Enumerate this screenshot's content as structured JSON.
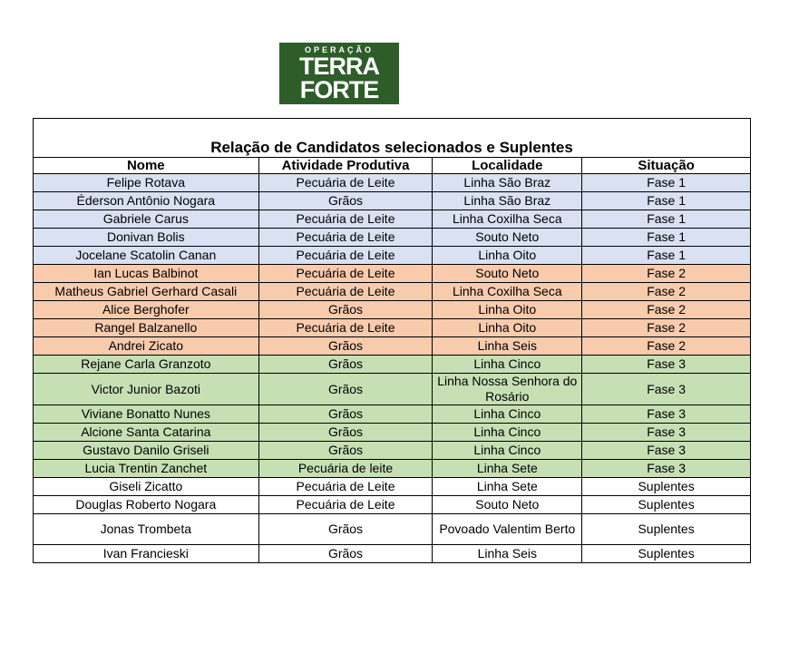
{
  "logo": {
    "top": "OPERAÇÃO",
    "line1": "TERRA",
    "line2": "FORTE"
  },
  "table": {
    "title": "Relação de Candidatos selecionados e Suplentes",
    "header": [
      "Nome",
      "Atividade Produtiva",
      "Localidade",
      "Situação"
    ],
    "rows": [
      [
        "Felipe Rotava",
        "Pecuária de Leite",
        "Linha São Braz",
        "Fase 1"
      ],
      [
        "Éderson Antônio Nogara",
        "Grãos",
        "Linha São Braz",
        "Fase 1"
      ],
      [
        "Gabriele Carus",
        "Pecuária de Leite",
        "Linha Coxilha Seca",
        "Fase 1"
      ],
      [
        "Donivan Bolis",
        "Pecuária de Leite",
        "Souto Neto",
        "Fase 1"
      ],
      [
        "Jocelane Scatolin Canan",
        "Pecuária de Leite",
        "Linha Oito",
        "Fase 1"
      ],
      [
        "Ian Lucas Balbinot",
        "Pecuária de Leite",
        "Souto Neto",
        "Fase 2"
      ],
      [
        "Matheus Gabriel Gerhard Casali",
        "Pecuária de Leite",
        "Linha Coxilha Seca",
        "Fase 2"
      ],
      [
        "Alice Berghofer",
        "Grãos",
        "Linha Oito",
        "Fase 2"
      ],
      [
        "Rangel Balzanello",
        "Pecuária de Leite",
        "Linha Oito",
        "Fase 2"
      ],
      [
        "Andrei Zicato",
        "Grãos",
        "Linha Seis",
        "Fase 2"
      ],
      [
        "Rejane Carla Granzoto",
        "Grãos",
        "Linha Cinco",
        "Fase 3"
      ],
      [
        "Victor Junior Bazoti",
        "Grãos",
        "Linha Nossa Senhora do Rosário",
        "Fase 3"
      ],
      [
        "Viviane Bonatto Nunes",
        "Grãos",
        "Linha Cinco",
        "Fase 3"
      ],
      [
        "Alcione Santa Catarina",
        "Grãos",
        "Linha Cinco",
        "Fase 3"
      ],
      [
        "Gustavo Danilo Griseli",
        "Grãos",
        "Linha Cinco",
        "Fase 3"
      ],
      [
        "Lucia Trentin Zanchet",
        "Pecuária de leite",
        "Linha Sete",
        "Fase 3"
      ],
      [
        "Giseli Zicatto",
        "Pecuária de Leite",
        "Linha Sete",
        "Suplentes"
      ],
      [
        "Douglas Roberto Nogara",
        "Pecuária de Leite",
        "Souto Neto",
        "Suplentes"
      ],
      [
        "Jonas Trombeta",
        "Grãos",
        "Povoado Valentim Berto",
        "Suplentes"
      ],
      [
        "Ivan Francieski",
        "Grãos",
        "Linha Seis",
        "Suplentes"
      ]
    ]
  }
}
